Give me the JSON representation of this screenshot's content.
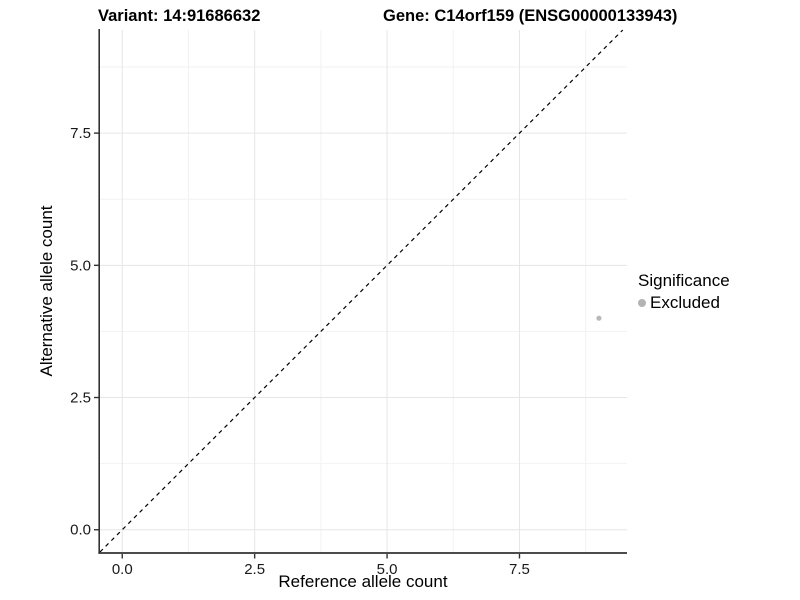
{
  "chart_data": {
    "type": "scatter",
    "title_left": "Variant: 14:91686632",
    "title_right": "Gene: C14orf159 (ENSG00000133943)",
    "xlabel": "Reference allele count",
    "ylabel": "Alternative allele count",
    "xlim": [
      -0.42,
      9.53
    ],
    "ylim": [
      -0.44,
      9.45
    ],
    "x_ticks": {
      "values": [
        0,
        2.5,
        5,
        7.5
      ],
      "labels": [
        "0.0",
        "2.5",
        "5.0",
        "7.5"
      ]
    },
    "y_ticks": {
      "values": [
        0,
        2.5,
        5,
        7.5
      ],
      "labels": [
        "0.0",
        "2.5",
        "5.0",
        "7.5"
      ]
    },
    "minor_ticks": [
      1.25,
      3.75,
      6.25,
      8.75
    ],
    "grid": true,
    "points": [
      {
        "x": 9,
        "y": 4,
        "series": "Excluded"
      }
    ],
    "reference_line": {
      "type": "identity",
      "style": "dashed",
      "color": "#000000",
      "dash": "4 4"
    },
    "legend": {
      "position": "right",
      "title": "Significance",
      "items": [
        {
          "label": "Excluded",
          "color": "#b3b3b3"
        }
      ]
    },
    "colors": {
      "point": "#b9b9b9",
      "major_grid": "#e6e6e6",
      "minor_grid": "#f2f2f2",
      "axis_line": "#333333",
      "tick_mark": "#333333",
      "tick_label": "#1a1a1a"
    }
  }
}
